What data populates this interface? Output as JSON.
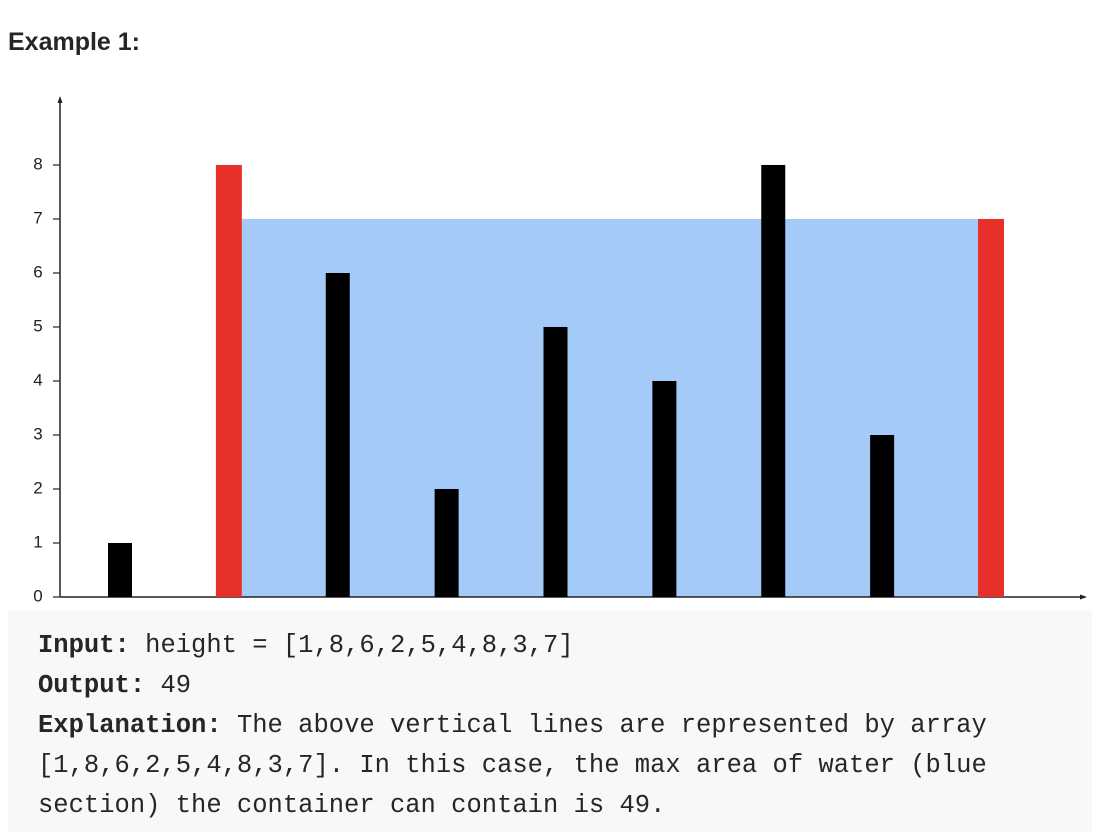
{
  "heading": "Example 1:",
  "chart_data": {
    "type": "bar",
    "categories": [
      null,
      null,
      null,
      null,
      null,
      null,
      null,
      null,
      null
    ],
    "values": [
      1,
      8,
      6,
      2,
      5,
      4,
      8,
      3,
      7
    ],
    "colors": [
      "#000000",
      "#e8302a",
      "#000000",
      "#000000",
      "#000000",
      "#000000",
      "#000000",
      "#000000",
      "#e8302a"
    ],
    "water_color": "#a4cbf8",
    "ylim": [
      0,
      9.24
    ],
    "yticks": [
      0,
      1,
      2,
      3,
      4,
      5,
      6,
      7,
      8
    ]
  },
  "example": {
    "input_label": "Input:",
    "input": "height = [1,8,6,2,5,4,8,3,7]",
    "output_label": "Output:",
    "output": "49",
    "explanation_label": "Explanation:",
    "explanation": "The above vertical lines are represented by array [1,8,6,2,5,4,8,3,7]. In this case, the max area of water (blue section) the container can contain is 49."
  }
}
